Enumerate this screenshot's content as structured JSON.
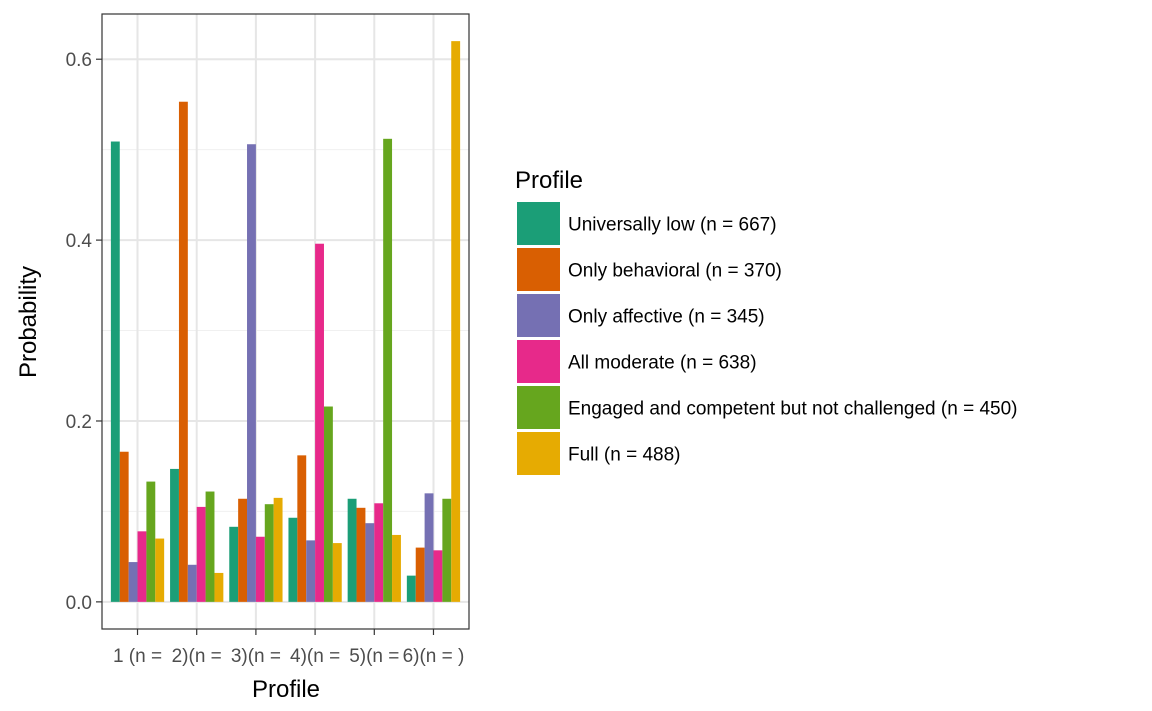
{
  "chart_data": {
    "type": "bar",
    "xlabel": "Profile",
    "ylabel": "Probability",
    "categories": [
      "1 (n = ",
      "2)(n = ",
      "3)(n = ",
      "4)(n = ",
      "5)(n = ",
      "6)(n = )"
    ],
    "ylim": [
      -0.03,
      0.65
    ],
    "yticks": [
      0.0,
      0.2,
      0.4,
      0.6
    ],
    "ytick_labels": [
      "0.0",
      "0.2",
      "0.4",
      "0.6"
    ],
    "grid": true,
    "legend": {
      "title": "Profile",
      "position": "right"
    },
    "series": [
      {
        "name": "Universally low (n = 667)",
        "color": "#1b9e77",
        "values": [
          0.509,
          0.147,
          0.083,
          0.093,
          0.114,
          0.029
        ]
      },
      {
        "name": "Only behavioral (n = 370)",
        "color": "#d95f02",
        "values": [
          0.166,
          0.553,
          0.114,
          0.162,
          0.104,
          0.06
        ]
      },
      {
        "name": "Only affective (n = 345)",
        "color": "#7570b3",
        "values": [
          0.044,
          0.041,
          0.506,
          0.068,
          0.087,
          0.12
        ]
      },
      {
        "name": "All moderate (n = 638)",
        "color": "#e7298a",
        "values": [
          0.078,
          0.105,
          0.072,
          0.396,
          0.109,
          0.057
        ]
      },
      {
        "name": "Engaged and competent but not challenged (n = 450)",
        "color": "#66a61e",
        "values": [
          0.133,
          0.122,
          0.108,
          0.216,
          0.512,
          0.114
        ]
      },
      {
        "name": "Full (n = 488)",
        "color": "#e6ab02",
        "values": [
          0.07,
          0.032,
          0.115,
          0.065,
          0.074,
          0.62
        ]
      }
    ]
  }
}
